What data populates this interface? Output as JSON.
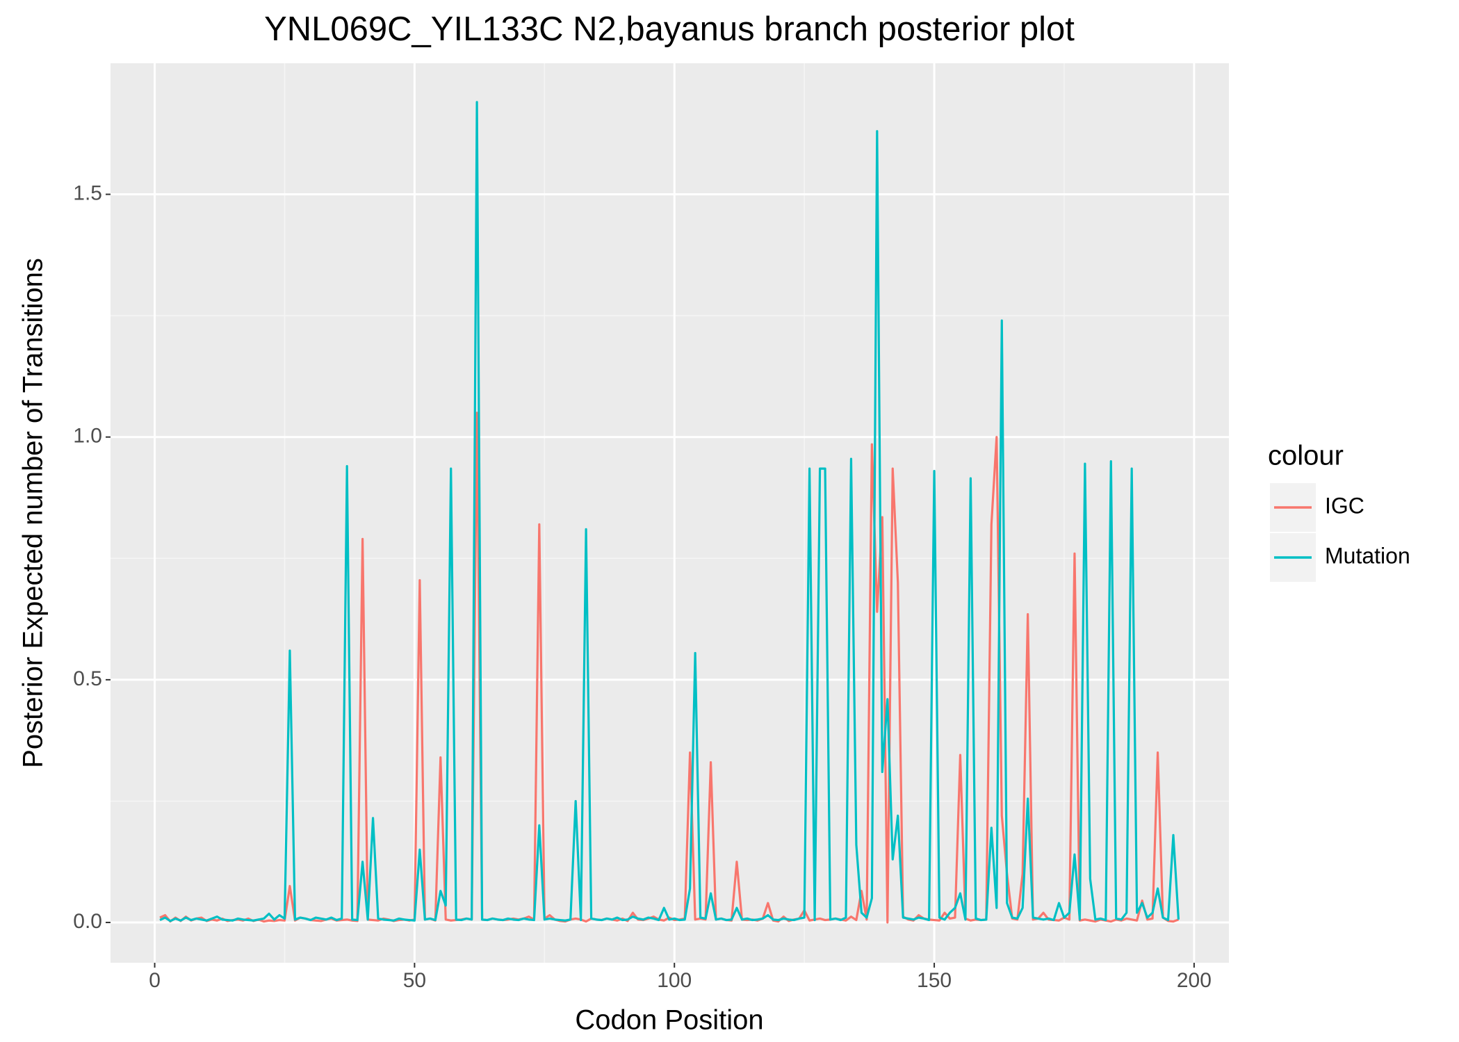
{
  "chart_data": {
    "type": "line",
    "title": "YNL069C_YIL133C N2,bayanus branch posterior plot",
    "x_label": "Codon Position",
    "y_label": "Posterior Expected number of Transitions",
    "legend_title": "colour",
    "legend_position": "right",
    "grid": true,
    "xlim": [
      -8.5,
      206.7
    ],
    "ylim": [
      -0.083,
      1.77
    ],
    "xticks": [
      0,
      50,
      100,
      150,
      200
    ],
    "yticks": [
      {
        "value": 0,
        "label": "0.0"
      },
      0.5,
      {
        "value": 1,
        "label": "1.0"
      },
      1.5
    ],
    "x": [
      1,
      2,
      3,
      4,
      5,
      6,
      7,
      8,
      9,
      10,
      11,
      12,
      13,
      14,
      15,
      16,
      17,
      18,
      19,
      20,
      21,
      22,
      23,
      24,
      25,
      26,
      27,
      28,
      29,
      30,
      31,
      32,
      33,
      34,
      35,
      36,
      37,
      38,
      39,
      40,
      41,
      42,
      43,
      44,
      45,
      46,
      47,
      48,
      49,
      50,
      51,
      52,
      53,
      54,
      55,
      56,
      57,
      58,
      59,
      60,
      61,
      62,
      63,
      64,
      65,
      66,
      67,
      68,
      69,
      70,
      71,
      72,
      73,
      74,
      75,
      76,
      77,
      78,
      79,
      80,
      81,
      82,
      83,
      84,
      85,
      86,
      87,
      88,
      89,
      90,
      91,
      92,
      93,
      94,
      95,
      96,
      97,
      98,
      99,
      100,
      101,
      102,
      103,
      104,
      105,
      106,
      107,
      108,
      109,
      110,
      111,
      112,
      113,
      114,
      115,
      116,
      117,
      118,
      119,
      120,
      121,
      122,
      123,
      124,
      125,
      126,
      127,
      128,
      129,
      130,
      131,
      132,
      133,
      134,
      135,
      136,
      137,
      138,
      139,
      140,
      141,
      142,
      143,
      144,
      145,
      146,
      147,
      148,
      149,
      150,
      151,
      152,
      153,
      154,
      155,
      156,
      157,
      158,
      159,
      160,
      161,
      162,
      163,
      164,
      165,
      166,
      167,
      168,
      169,
      170,
      171,
      172,
      173,
      174,
      175,
      176,
      177,
      178,
      179,
      180,
      181,
      182,
      183,
      184,
      185,
      186,
      187,
      188,
      189,
      190,
      191,
      192,
      193,
      194,
      195,
      196,
      197
    ],
    "series": [
      {
        "name": "IGC",
        "color": "#F8766D",
        "values": [
          0.01,
          0.015,
          0.002,
          0.01,
          0.003,
          0.012,
          0.004,
          0.008,
          0.01,
          0.003,
          0.006,
          0.004,
          0.008,
          0.003,
          0.005,
          0.006,
          0.004,
          0.008,
          0.003,
          0.006,
          0.002,
          0.004,
          0.003,
          0.005,
          0.004,
          0.075,
          0.004,
          0.01,
          0.008,
          0.005,
          0.004,
          0.003,
          0.006,
          0.008,
          0.004,
          0.005,
          0.006,
          0.004,
          0.003,
          0.79,
          0.006,
          0.005,
          0.004,
          0.008,
          0.006,
          0.003,
          0.005,
          0.006,
          0.004,
          0.006,
          0.705,
          0.006,
          0.008,
          0.004,
          0.34,
          0.006,
          0.004,
          0.005,
          0.006,
          0.008,
          0.006,
          1.05,
          0.006,
          0.005,
          0.008,
          0.006,
          0.005,
          0.006,
          0.008,
          0.006,
          0.008,
          0.012,
          0.006,
          0.82,
          0.008,
          0.015,
          0.006,
          0.003,
          0.002,
          0.006,
          0.008,
          0.006,
          0.002,
          0.008,
          0.006,
          0.005,
          0.008,
          0.006,
          0.004,
          0.008,
          0.003,
          0.02,
          0.006,
          0.005,
          0.008,
          0.012,
          0.006,
          0.004,
          0.01,
          0.005,
          0.006,
          0.008,
          0.35,
          0.006,
          0.008,
          0.006,
          0.33,
          0.006,
          0.008,
          0.005,
          0.004,
          0.125,
          0.006,
          0.005,
          0.006,
          0.004,
          0.008,
          0.04,
          0.004,
          0.002,
          0.012,
          0.003,
          0.006,
          0.008,
          0.025,
          0.004,
          0.006,
          0.008,
          0.005,
          0.006,
          0.008,
          0.006,
          0.004,
          0.012,
          0.005,
          0.065,
          0.006,
          0.985,
          0.64,
          0.835,
          0.0,
          0.935,
          0.7,
          0.012,
          0.006,
          0.004,
          0.015,
          0.008,
          0.006,
          0.005,
          0.004,
          0.02,
          0.008,
          0.01,
          0.345,
          0.008,
          0.004,
          0.006,
          0.005,
          0.006,
          0.82,
          1.0,
          0.22,
          0.1,
          0.008,
          0.006,
          0.1,
          0.635,
          0.006,
          0.008,
          0.02,
          0.006,
          0.005,
          0.004,
          0.01,
          0.006,
          0.76,
          0.004,
          0.006,
          0.004,
          0.002,
          0.006,
          0.004,
          0.002,
          0.006,
          0.004,
          0.008,
          0.006,
          0.004,
          0.045,
          0.006,
          0.008,
          0.35,
          0.01,
          0.003,
          0.002,
          0.006
        ]
      },
      {
        "name": "Mutation",
        "color": "#00BFC4",
        "values": [
          0.005,
          0.01,
          0.003,
          0.008,
          0.004,
          0.01,
          0.005,
          0.008,
          0.006,
          0.004,
          0.008,
          0.012,
          0.006,
          0.005,
          0.004,
          0.008,
          0.006,
          0.005,
          0.004,
          0.006,
          0.008,
          0.018,
          0.006,
          0.015,
          0.008,
          0.56,
          0.006,
          0.01,
          0.008,
          0.005,
          0.01,
          0.008,
          0.006,
          0.01,
          0.005,
          0.008,
          0.94,
          0.006,
          0.005,
          0.125,
          0.006,
          0.215,
          0.008,
          0.006,
          0.005,
          0.004,
          0.008,
          0.006,
          0.005,
          0.004,
          0.15,
          0.006,
          0.008,
          0.005,
          0.065,
          0.035,
          0.935,
          0.006,
          0.005,
          0.008,
          0.006,
          1.69,
          0.006,
          0.005,
          0.008,
          0.006,
          0.005,
          0.008,
          0.006,
          0.005,
          0.008,
          0.006,
          0.005,
          0.2,
          0.006,
          0.008,
          0.006,
          0.005,
          0.004,
          0.006,
          0.25,
          0.005,
          0.81,
          0.008,
          0.006,
          0.005,
          0.008,
          0.006,
          0.01,
          0.005,
          0.006,
          0.012,
          0.008,
          0.006,
          0.01,
          0.008,
          0.005,
          0.03,
          0.006,
          0.008,
          0.005,
          0.006,
          0.07,
          0.555,
          0.01,
          0.008,
          0.06,
          0.006,
          0.008,
          0.005,
          0.006,
          0.03,
          0.006,
          0.008,
          0.005,
          0.006,
          0.008,
          0.015,
          0.006,
          0.005,
          0.008,
          0.006,
          0.005,
          0.008,
          0.01,
          0.935,
          0.005,
          0.935,
          0.935,
          0.006,
          0.008,
          0.005,
          0.01,
          0.955,
          0.16,
          0.02,
          0.01,
          0.05,
          1.63,
          0.31,
          0.46,
          0.13,
          0.22,
          0.01,
          0.008,
          0.006,
          0.01,
          0.008,
          0.005,
          0.93,
          0.01,
          0.006,
          0.02,
          0.03,
          0.06,
          0.006,
          0.915,
          0.008,
          0.005,
          0.006,
          0.195,
          0.03,
          1.24,
          0.04,
          0.01,
          0.008,
          0.03,
          0.255,
          0.01,
          0.008,
          0.006,
          0.008,
          0.005,
          0.04,
          0.01,
          0.02,
          0.14,
          0.006,
          0.945,
          0.09,
          0.006,
          0.008,
          0.005,
          0.95,
          0.008,
          0.006,
          0.02,
          0.935,
          0.02,
          0.04,
          0.01,
          0.02,
          0.07,
          0.01,
          0.005,
          0.18,
          0.006
        ]
      }
    ]
  }
}
